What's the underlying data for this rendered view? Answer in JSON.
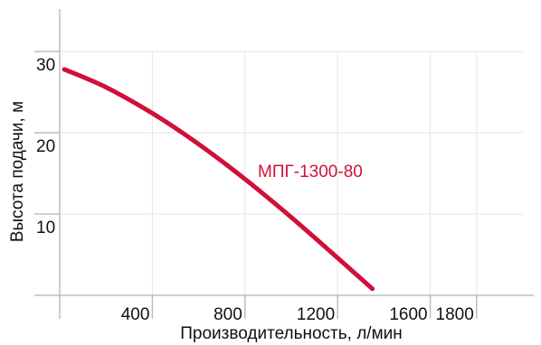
{
  "chart_data": {
    "type": "line",
    "xlabel": "Производительность, л/мин",
    "ylabel": "Высота подачи, м",
    "xlim": [
      0,
      2000
    ],
    "ylim": [
      0,
      35
    ],
    "x_ticks": [
      400,
      800,
      1200,
      1600,
      1800
    ],
    "y_ticks": [
      10,
      20,
      30
    ],
    "grid": true,
    "series": [
      {
        "name": "МПГ-1300-80",
        "color": "#d0103a",
        "x": [
          20,
          200,
          400,
          600,
          800,
          1000,
          1200,
          1350
        ],
        "y": [
          27.8,
          25.6,
          22.4,
          18.6,
          14.3,
          9.6,
          4.6,
          0.8
        ]
      }
    ]
  }
}
